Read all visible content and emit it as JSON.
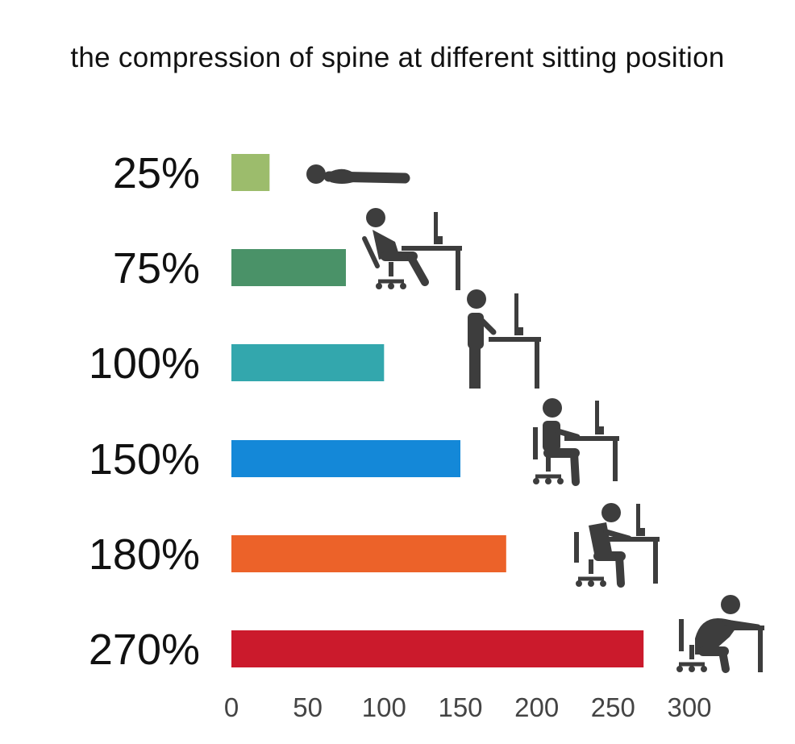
{
  "chart_data": {
    "type": "bar",
    "orientation": "horizontal",
    "title": "the compression of spine at different sitting position",
    "categories": [
      "25%",
      "75%",
      "100%",
      "150%",
      "180%",
      "270%"
    ],
    "values": [
      25,
      75,
      100,
      150,
      180,
      270
    ],
    "colors": [
      "#9cbc6c",
      "#4a9268",
      "#33a7ad",
      "#1488d8",
      "#ec6229",
      "#cb1a2c"
    ],
    "xticks": [
      0,
      50,
      100,
      150,
      200,
      250,
      300
    ],
    "xlim": [
      0,
      300
    ],
    "xlabel": "",
    "ylabel": "",
    "grid": false,
    "icons": [
      "lying-down-icon",
      "reclined-sitting-icon",
      "standing-icon",
      "upright-sitting-icon",
      "leaning-forward-sitting-icon",
      "hunched-sitting-icon"
    ]
  }
}
